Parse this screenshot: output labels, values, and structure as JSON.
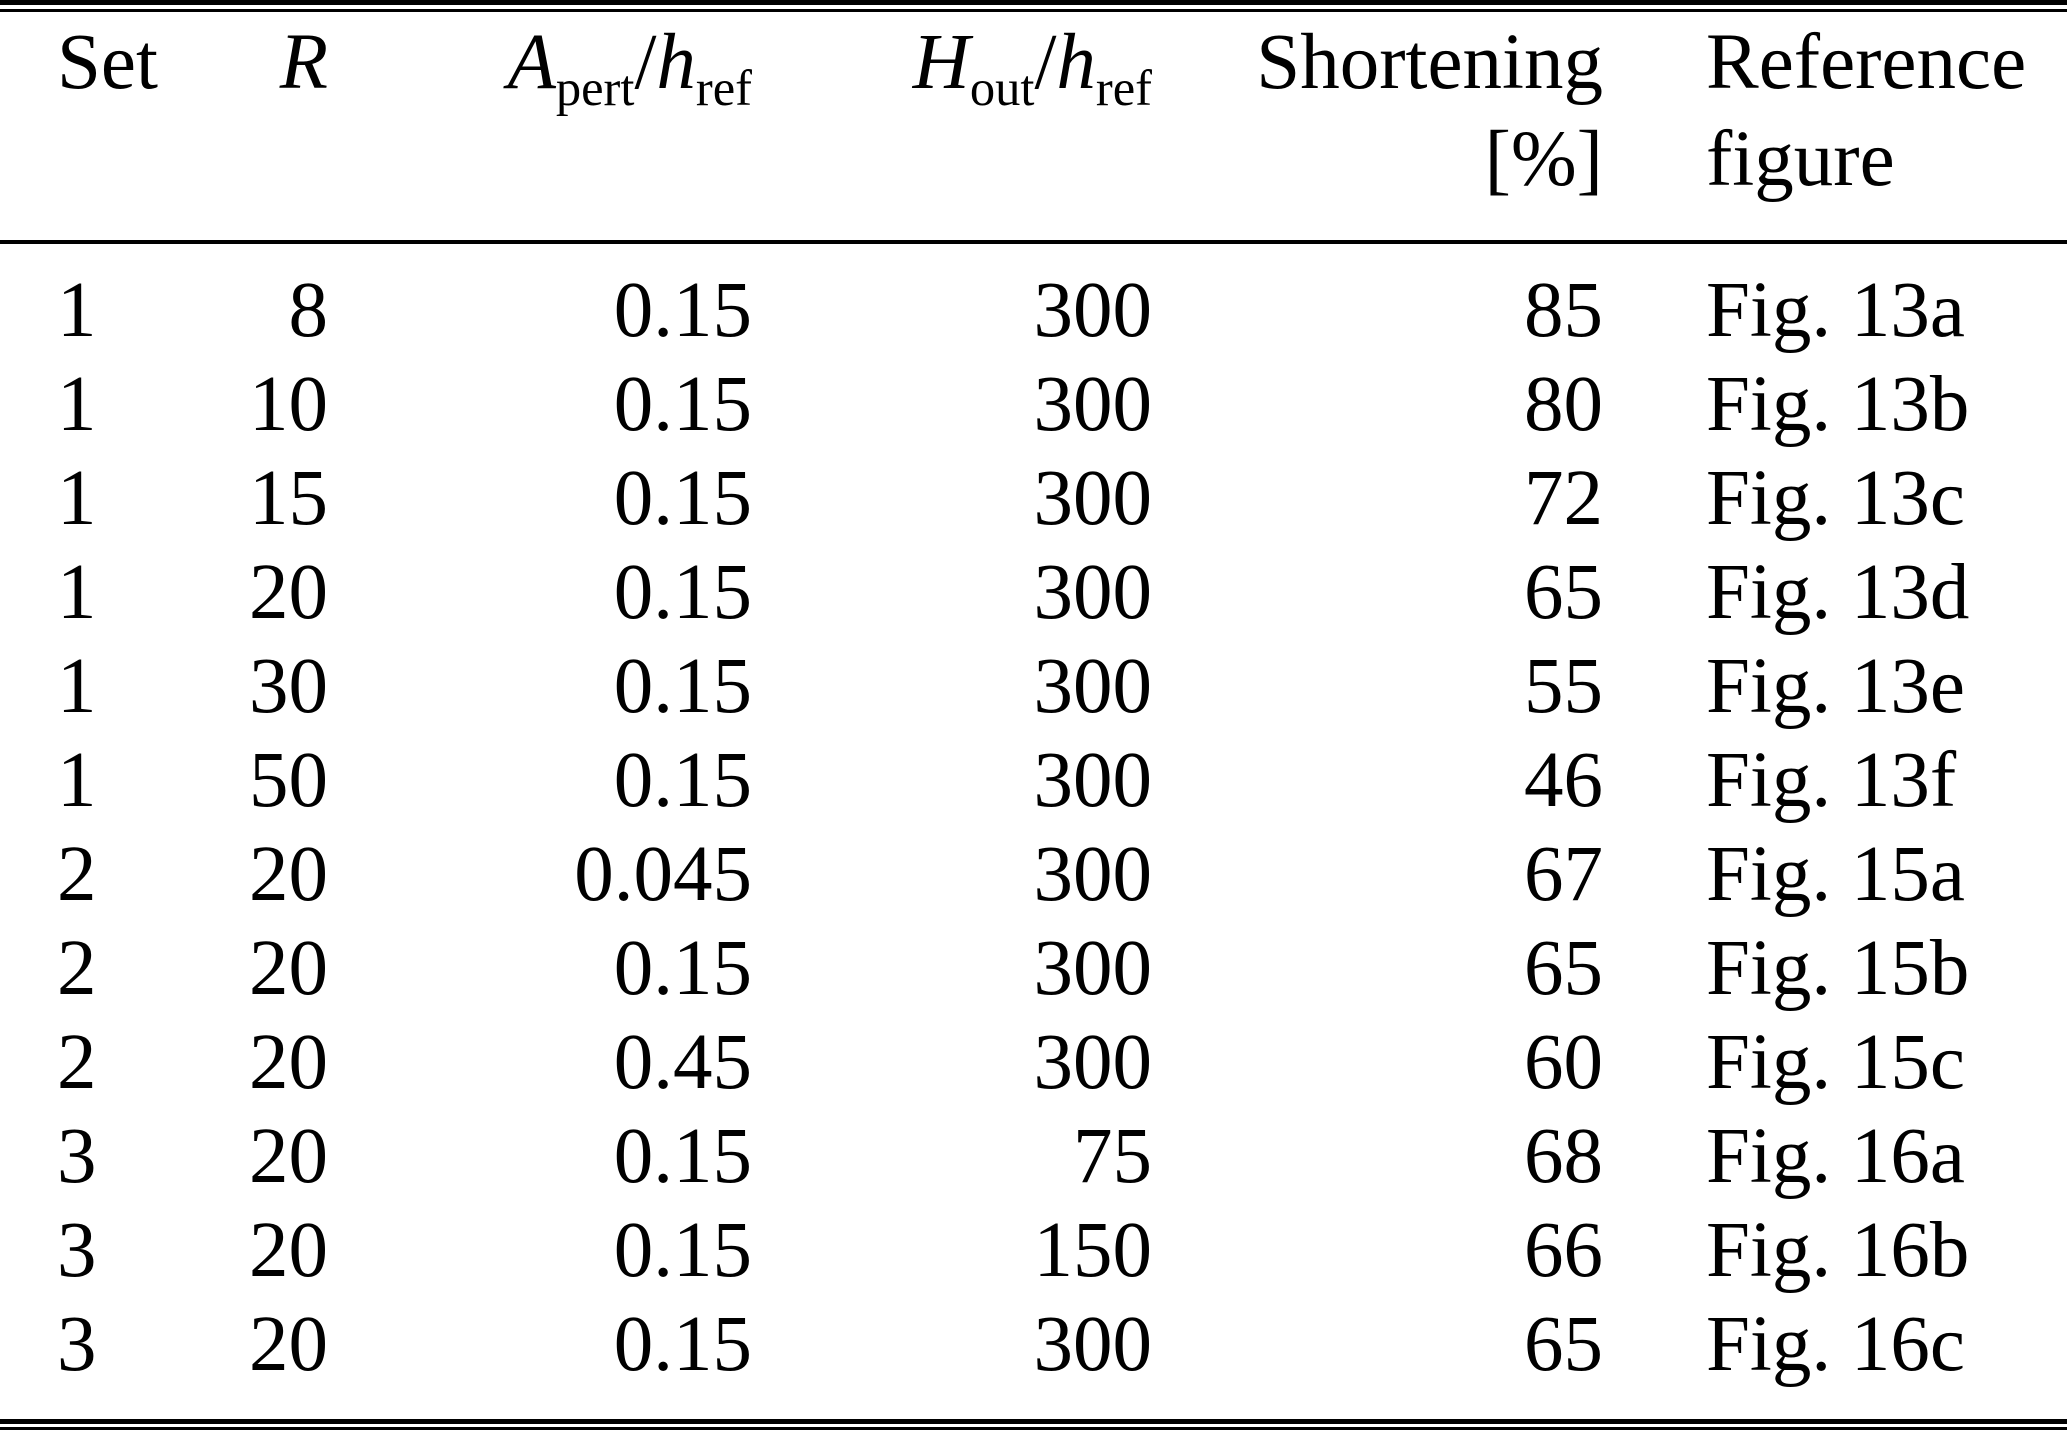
{
  "colors": {
    "background": "#ffffff",
    "text": "#000000",
    "rule": "#000000"
  },
  "table": {
    "column_keys": [
      "set",
      "r",
      "a_pert",
      "h_out",
      "shortening",
      "reference"
    ],
    "header": {
      "set": "Set",
      "r": "R",
      "a_pert": {
        "numerator_base": "A",
        "numerator_sub": "pert",
        "slash": "/",
        "denominator_base": "h",
        "denominator_sub": "ref"
      },
      "h_out": {
        "numerator_base": "H",
        "numerator_sub": "out",
        "slash": "/",
        "denominator_base": "h",
        "denominator_sub": "ref"
      },
      "shortening_line1": "Shortening",
      "shortening_line2": "[%]",
      "reference_line1": "Reference",
      "reference_line2": "figure"
    },
    "rows": [
      {
        "set": "1",
        "r": "8",
        "a_pert": "0.15",
        "h_out": "300",
        "shortening": "85",
        "reference": "Fig. 13a"
      },
      {
        "set": "1",
        "r": "10",
        "a_pert": "0.15",
        "h_out": "300",
        "shortening": "80",
        "reference": "Fig. 13b"
      },
      {
        "set": "1",
        "r": "15",
        "a_pert": "0.15",
        "h_out": "300",
        "shortening": "72",
        "reference": "Fig. 13c"
      },
      {
        "set": "1",
        "r": "20",
        "a_pert": "0.15",
        "h_out": "300",
        "shortening": "65",
        "reference": "Fig. 13d"
      },
      {
        "set": "1",
        "r": "30",
        "a_pert": "0.15",
        "h_out": "300",
        "shortening": "55",
        "reference": "Fig. 13e"
      },
      {
        "set": "1",
        "r": "50",
        "a_pert": "0.15",
        "h_out": "300",
        "shortening": "46",
        "reference": "Fig. 13f"
      },
      {
        "set": "2",
        "r": "20",
        "a_pert": "0.045",
        "h_out": "300",
        "shortening": "67",
        "reference": "Fig. 15a"
      },
      {
        "set": "2",
        "r": "20",
        "a_pert": "0.15",
        "h_out": "300",
        "shortening": "65",
        "reference": "Fig. 15b"
      },
      {
        "set": "2",
        "r": "20",
        "a_pert": "0.45",
        "h_out": "300",
        "shortening": "60",
        "reference": "Fig. 15c"
      },
      {
        "set": "3",
        "r": "20",
        "a_pert": "0.15",
        "h_out": "75",
        "shortening": "68",
        "reference": "Fig. 16a"
      },
      {
        "set": "3",
        "r": "20",
        "a_pert": "0.15",
        "h_out": "150",
        "shortening": "66",
        "reference": "Fig. 16b"
      },
      {
        "set": "3",
        "r": "20",
        "a_pert": "0.15",
        "h_out": "300",
        "shortening": "65",
        "reference": "Fig. 16c"
      }
    ]
  }
}
